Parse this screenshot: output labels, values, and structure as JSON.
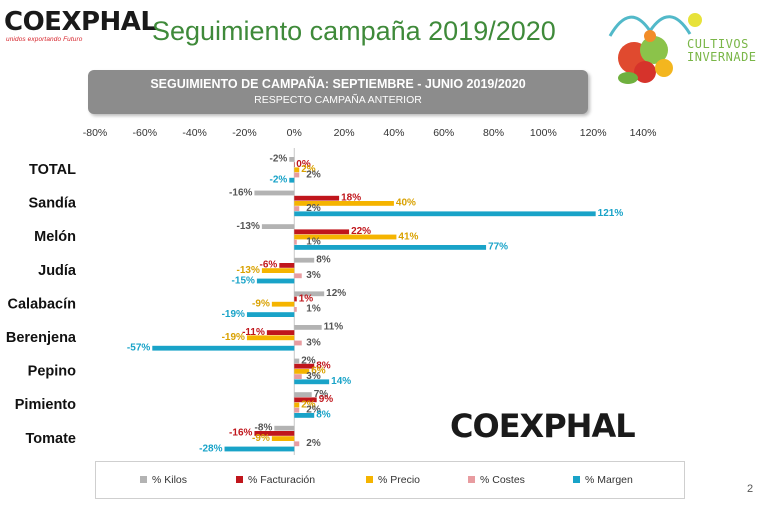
{
  "header": {
    "brand_name": "COEXPHAL",
    "brand_tagline": "unidos exportando Futuro",
    "slide_title": "Seguimiento campaña 2019/2020",
    "cultivos_line1": "CULTIVOS",
    "cultivos_line2": "INVERNADE"
  },
  "banner": {
    "title": "SEGUIMIENTO DE CAMPAÑA: SEPTIEMBRE - JUNIO 2019/2020",
    "subtitle": "RESPECTO CAMPAÑA ANTERIOR"
  },
  "watermark": "COEXPHAL",
  "page_number": "2",
  "colors": {
    "kilos": "#b3b3b3",
    "facturacion": "#c0161c",
    "precio": "#f5b400",
    "costes": "#e89ca0",
    "margen": "#19a3c8",
    "title_green": "#3f8a3a",
    "banner_gray": "#8c8c8c"
  },
  "chart_data": {
    "type": "bar",
    "orientation": "horizontal",
    "title": "SEGUIMIENTO DE CAMPAÑA: SEPTIEMBRE - JUNIO 2019/2020",
    "subtitle": "RESPECTO CAMPAÑA ANTERIOR",
    "xlim": [
      -80,
      140
    ],
    "x_ticks": [
      -80,
      -60,
      -40,
      -20,
      0,
      20,
      40,
      60,
      80,
      100,
      120,
      140
    ],
    "x_tick_labels": [
      "-80%",
      "-60%",
      "-40%",
      "-20%",
      "0%",
      "20%",
      "40%",
      "60%",
      "80%",
      "100%",
      "120%",
      "140%"
    ],
    "grid": false,
    "legend_position": "bottom",
    "categories": [
      "TOTAL",
      "Sandía",
      "Melón",
      "Judía",
      "Calabacín",
      "Berenjena",
      "Pepino",
      "Pimiento",
      "Tomate"
    ],
    "series": [
      {
        "name": "% Kilos",
        "key": "kilos",
        "values": [
          -2,
          -16,
          -13,
          8,
          12,
          11,
          2,
          7,
          -8
        ],
        "labels": [
          "-2%",
          "-16%",
          "-13%",
          "8%",
          "12%",
          "11%",
          "2%",
          "7%",
          "-8%"
        ]
      },
      {
        "name": "% Facturación",
        "key": "facturacion",
        "values": [
          0,
          18,
          22,
          -6,
          1,
          -11,
          8,
          9,
          -16
        ],
        "labels": [
          "0%",
          "18%",
          "22%",
          "-6%",
          "1%",
          "-11%",
          "8%",
          "9%",
          "-16%"
        ]
      },
      {
        "name": "% Precio",
        "key": "precio",
        "values": [
          2,
          40,
          41,
          -13,
          -9,
          -19,
          6,
          2,
          -9
        ],
        "labels": [
          "2%",
          "40%",
          "41%",
          "-13%",
          "-9%",
          "-19%",
          "6%",
          "2%",
          "-9%"
        ]
      },
      {
        "name": "% Costes",
        "key": "costes",
        "values": [
          2,
          2,
          1,
          3,
          1,
          3,
          3,
          2,
          2
        ],
        "labels": [
          "2%",
          "2%",
          "1%",
          "3%",
          "1%",
          "3%",
          "3%",
          "2%",
          "2%"
        ]
      },
      {
        "name": "% Margen",
        "key": "margen",
        "values": [
          -2,
          121,
          77,
          -15,
          -19,
          -57,
          14,
          8,
          -28
        ],
        "labels": [
          "-2%",
          "121%",
          "77%",
          "-15%",
          "-19%",
          "-57%",
          "14%",
          "8%",
          "-28%"
        ]
      }
    ]
  }
}
